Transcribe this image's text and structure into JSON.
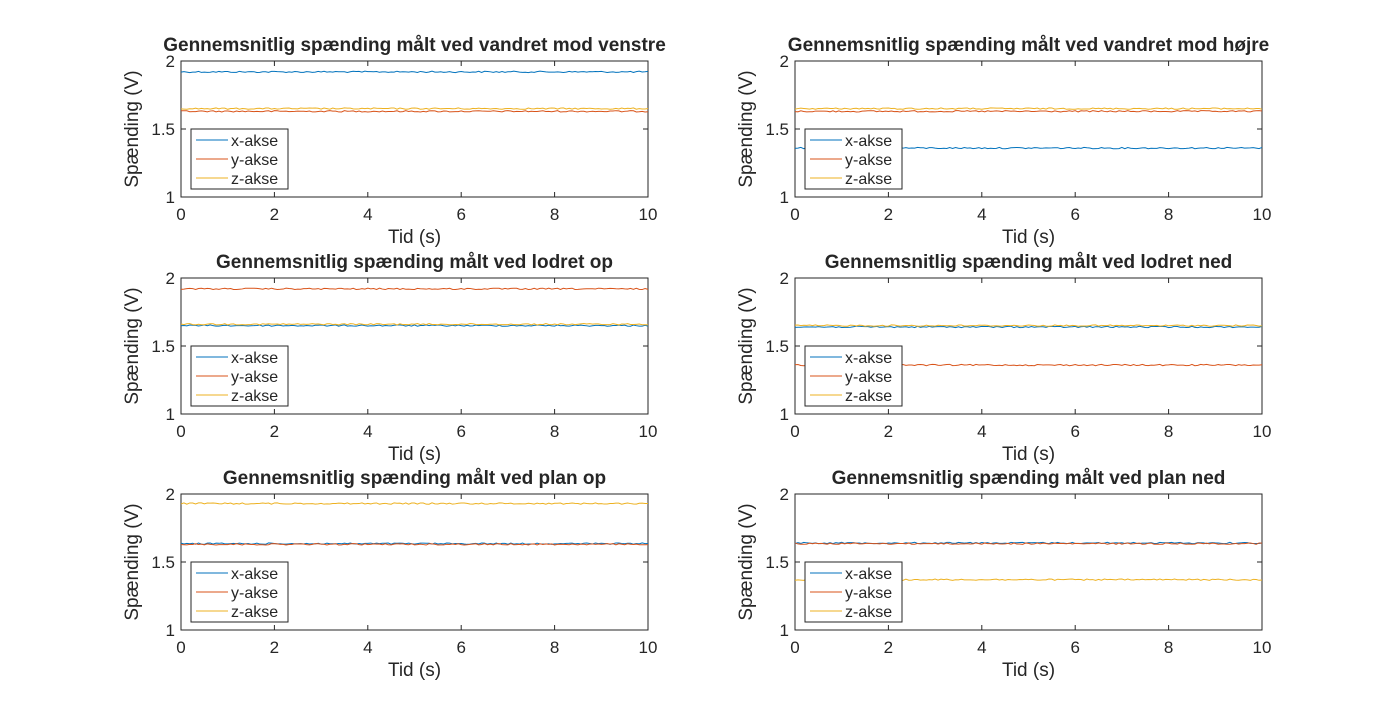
{
  "chart_data": [
    {
      "type": "line",
      "title": "Gennemsnitlig spænding målt ved vandret mod venstre",
      "xlabel": "Tid (s)",
      "ylabel": "Spænding (V)",
      "xlim": [
        0,
        10
      ],
      "ylim": [
        1,
        2
      ],
      "xticks": [
        "0",
        "2",
        "4",
        "6",
        "8",
        "10"
      ],
      "yticks": [
        "1",
        "1.5",
        "2"
      ],
      "grid": false,
      "legend_position": "bottom-left",
      "series": [
        {
          "name": "x-akse",
          "color": "#0072BD",
          "x": [
            0,
            10
          ],
          "y": [
            1.92,
            1.92
          ]
        },
        {
          "name": "y-akse",
          "color": "#D95319",
          "x": [
            0,
            10
          ],
          "y": [
            1.63,
            1.63
          ]
        },
        {
          "name": "z-akse",
          "color": "#EDB120",
          "x": [
            0,
            10
          ],
          "y": [
            1.65,
            1.65
          ]
        }
      ]
    },
    {
      "type": "line",
      "title": "Gennemsnitlig spænding målt ved vandret mod højre",
      "xlabel": "Tid (s)",
      "ylabel": "Spænding (V)",
      "xlim": [
        0,
        10
      ],
      "ylim": [
        1,
        2
      ],
      "xticks": [
        "0",
        "2",
        "4",
        "6",
        "8",
        "10"
      ],
      "yticks": [
        "1",
        "1.5",
        "2"
      ],
      "grid": false,
      "legend_position": "bottom-left",
      "series": [
        {
          "name": "x-akse",
          "color": "#0072BD",
          "x": [
            0,
            10
          ],
          "y": [
            1.36,
            1.36
          ]
        },
        {
          "name": "y-akse",
          "color": "#D95319",
          "x": [
            0,
            10
          ],
          "y": [
            1.63,
            1.63
          ]
        },
        {
          "name": "z-akse",
          "color": "#EDB120",
          "x": [
            0,
            10
          ],
          "y": [
            1.65,
            1.65
          ]
        }
      ]
    },
    {
      "type": "line",
      "title": "Gennemsnitlig spænding målt ved lodret op",
      "xlabel": "Tid (s)",
      "ylabel": "Spænding (V)",
      "xlim": [
        0,
        10
      ],
      "ylim": [
        1,
        2
      ],
      "xticks": [
        "0",
        "2",
        "4",
        "6",
        "8",
        "10"
      ],
      "yticks": [
        "1",
        "1.5",
        "2"
      ],
      "grid": false,
      "legend_position": "bottom-left",
      "series": [
        {
          "name": "x-akse",
          "color": "#0072BD",
          "x": [
            0,
            10
          ],
          "y": [
            1.65,
            1.65
          ]
        },
        {
          "name": "y-akse",
          "color": "#D95319",
          "x": [
            0,
            10
          ],
          "y": [
            1.92,
            1.92
          ]
        },
        {
          "name": "z-akse",
          "color": "#EDB120",
          "x": [
            0,
            10
          ],
          "y": [
            1.66,
            1.66
          ]
        }
      ]
    },
    {
      "type": "line",
      "title": "Gennemsnitlig spænding målt ved lodret ned",
      "xlabel": "Tid (s)",
      "ylabel": "Spænding (V)",
      "xlim": [
        0,
        10
      ],
      "ylim": [
        1,
        2
      ],
      "xticks": [
        "0",
        "2",
        "4",
        "6",
        "8",
        "10"
      ],
      "yticks": [
        "1",
        "1.5",
        "2"
      ],
      "grid": false,
      "legend_position": "bottom-left",
      "series": [
        {
          "name": "x-akse",
          "color": "#0072BD",
          "x": [
            0,
            10
          ],
          "y": [
            1.64,
            1.64
          ]
        },
        {
          "name": "y-akse",
          "color": "#D95319",
          "x": [
            0,
            10
          ],
          "y": [
            1.36,
            1.36
          ]
        },
        {
          "name": "z-akse",
          "color": "#EDB120",
          "x": [
            0,
            10
          ],
          "y": [
            1.65,
            1.65
          ]
        }
      ]
    },
    {
      "type": "line",
      "title": "Gennemsnitlig spænding målt ved plan op",
      "xlabel": "Tid (s)",
      "ylabel": "Spænding (V)",
      "xlim": [
        0,
        10
      ],
      "ylim": [
        1,
        2
      ],
      "xticks": [
        "0",
        "2",
        "4",
        "6",
        "8",
        "10"
      ],
      "yticks": [
        "1",
        "1.5",
        "2"
      ],
      "grid": false,
      "legend_position": "bottom-left",
      "series": [
        {
          "name": "x-akse",
          "color": "#0072BD",
          "x": [
            0,
            10
          ],
          "y": [
            1.635,
            1.635
          ]
        },
        {
          "name": "y-akse",
          "color": "#D95319",
          "x": [
            0,
            10
          ],
          "y": [
            1.63,
            1.63
          ]
        },
        {
          "name": "z-akse",
          "color": "#EDB120",
          "x": [
            0,
            10
          ],
          "y": [
            1.93,
            1.93
          ]
        }
      ]
    },
    {
      "type": "line",
      "title": "Gennemsnitlig spænding målt ved plan ned",
      "xlabel": "Tid (s)",
      "ylabel": "Spænding (V)",
      "xlim": [
        0,
        10
      ],
      "ylim": [
        1,
        2
      ],
      "xticks": [
        "0",
        "2",
        "4",
        "6",
        "8",
        "10"
      ],
      "yticks": [
        "1",
        "1.5",
        "2"
      ],
      "grid": false,
      "legend_position": "bottom-left",
      "series": [
        {
          "name": "x-akse",
          "color": "#0072BD",
          "x": [
            0,
            10
          ],
          "y": [
            1.64,
            1.64
          ]
        },
        {
          "name": "y-akse",
          "color": "#D95319",
          "x": [
            0,
            10
          ],
          "y": [
            1.635,
            1.635
          ]
        },
        {
          "name": "z-akse",
          "color": "#EDB120",
          "x": [
            0,
            10
          ],
          "y": [
            1.37,
            1.37
          ]
        }
      ]
    }
  ]
}
